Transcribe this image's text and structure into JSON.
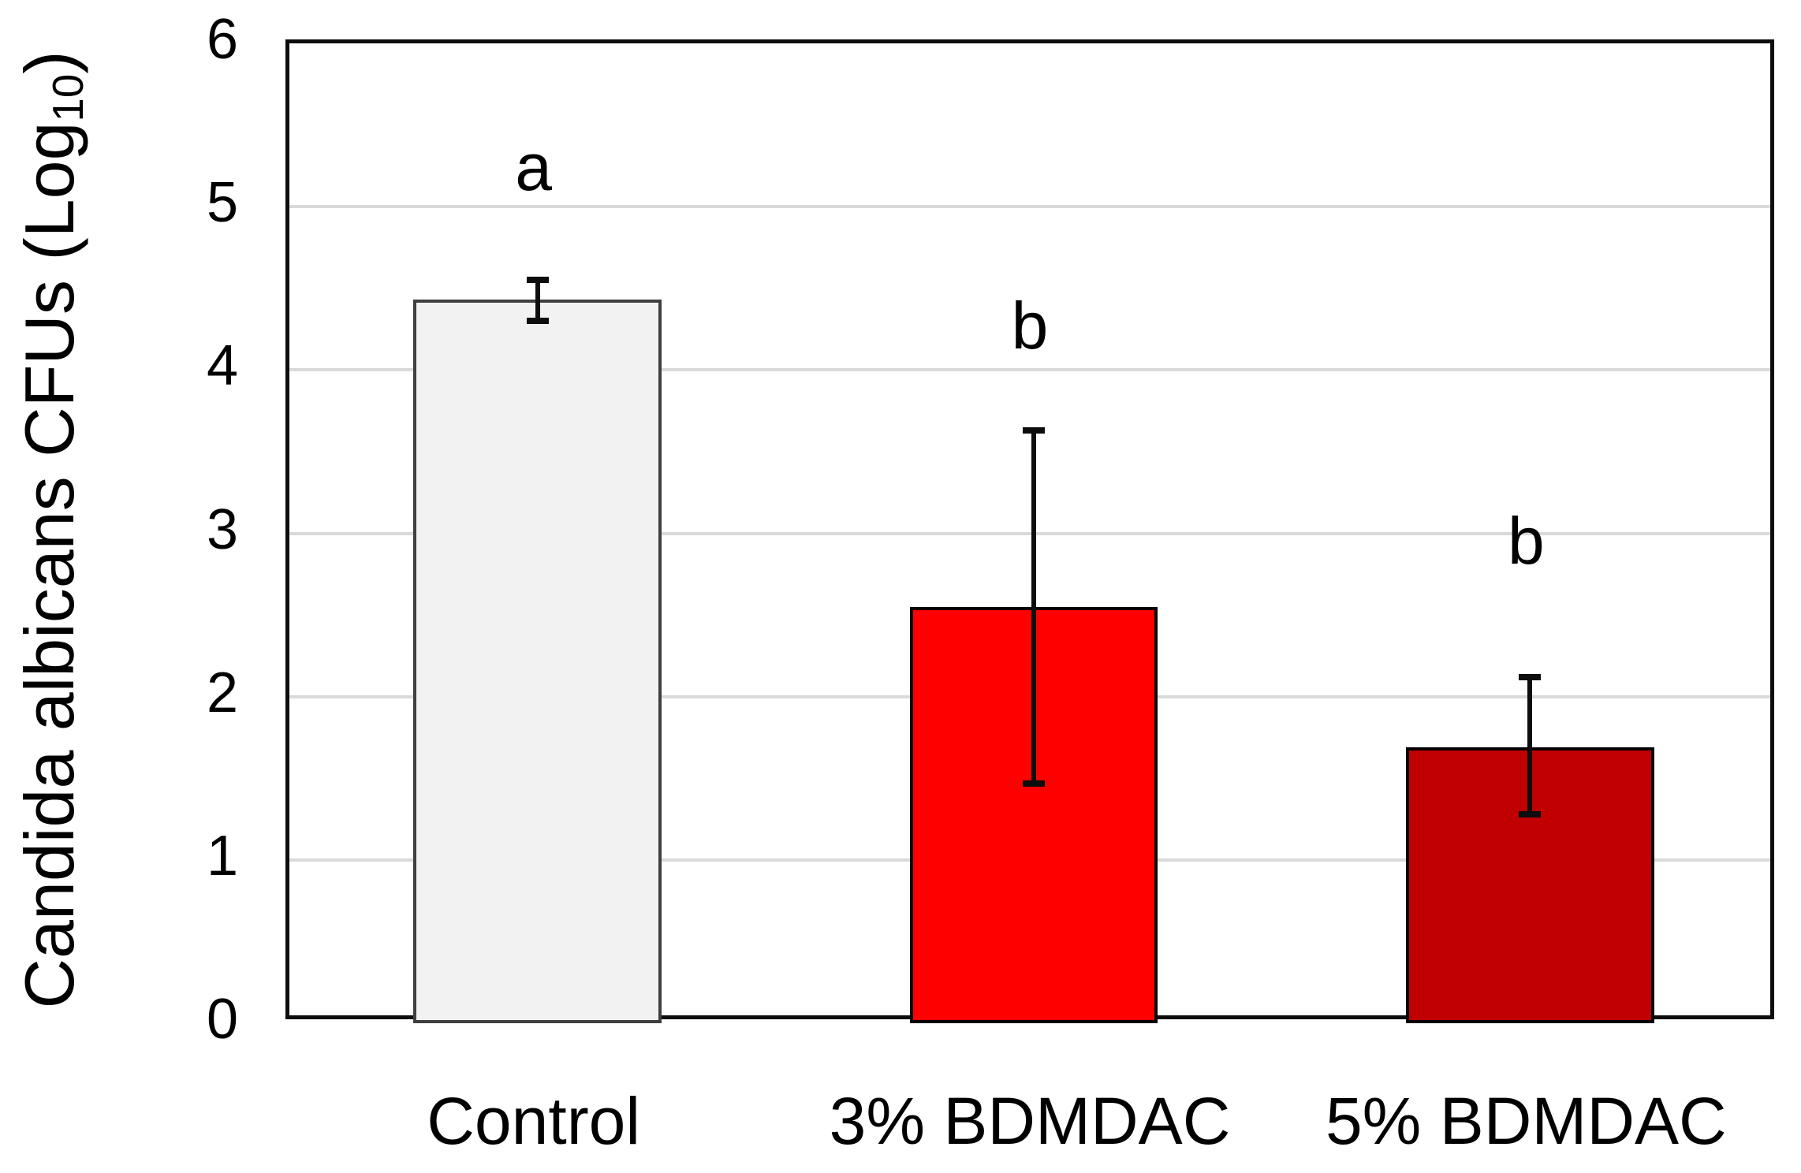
{
  "chart_data": {
    "type": "bar",
    "title": "",
    "xlabel": "",
    "ylabel": "Candida albicans CFUs (Log10)",
    "ylabel_main": "Candida albicans CFUs (Log",
    "ylabel_sub": "10",
    "ylabel_close": ")",
    "ylim": [
      0,
      6
    ],
    "yticks": [
      0,
      1,
      2,
      3,
      4,
      5,
      6
    ],
    "grid": "horizontal-major",
    "legend": "none",
    "categories": [
      "Control",
      "3% BDMDAC",
      "5% BDMDAC"
    ],
    "values": [
      4.43,
      2.55,
      1.69
    ],
    "error_upper": [
      0.14,
      1.1,
      0.45
    ],
    "error_lower": [
      0.15,
      1.1,
      0.43
    ],
    "sig_letters": [
      "a",
      "b",
      "b"
    ],
    "sig_letter_y": [
      5.22,
      4.25,
      2.93
    ],
    "bar_fill_colors": [
      "#f2f2f2",
      "#fe0000",
      "#c00000"
    ],
    "bar_border_colors": [
      "#3f3f3f",
      "#000000",
      "#000000"
    ]
  },
  "style_colors": {
    "gridline": "#d9d9d9",
    "frame": "#0d0d0d",
    "error_bar": "#0d0d0d",
    "text": "#000000",
    "background": "#ffffff"
  }
}
